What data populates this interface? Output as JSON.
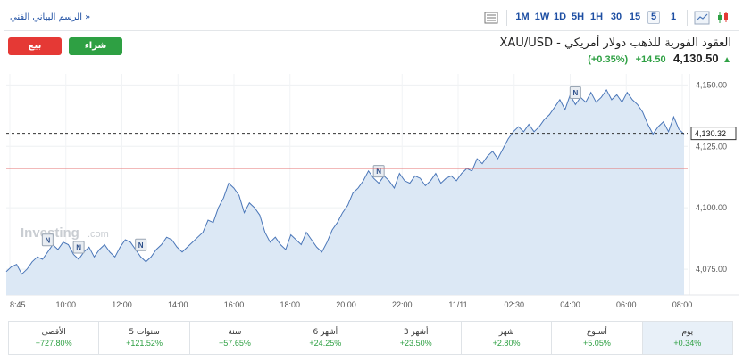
{
  "toolbar": {
    "tech_chart_link": "الرسم البياني الفني »",
    "timeframes": [
      "1M",
      "1W",
      "1D",
      "5H",
      "1H",
      "30",
      "15",
      "5",
      "1"
    ],
    "active_timeframe": "5"
  },
  "buttons": {
    "sell": "بيع",
    "buy": "شراء"
  },
  "instrument": {
    "title": "XAU/USD - العقود الفورية للذهب دولار أمريكي",
    "price": "4,130.50",
    "change": "+14.50",
    "change_pct": "(+0.35%)",
    "direction_icon": "up-arrow-icon"
  },
  "watermark": {
    "brand": "Investing",
    "suffix": ".com"
  },
  "chart_data": {
    "type": "area",
    "x_tick_labels": [
      "8:45",
      "10:00",
      "12:00",
      "14:00",
      "16:00",
      "18:00",
      "20:00",
      "22:00",
      "11/11",
      "02:30",
      "04:00",
      "06:00",
      "08:00"
    ],
    "y_tick_labels": [
      "4,150.00",
      "4,125.00",
      "4,100.00",
      "4,075.00"
    ],
    "y_ticks": [
      4150,
      4125,
      4100,
      4075
    ],
    "ylim": [
      4064.5,
      4154.5
    ],
    "last_price": 4130.32,
    "last_price_label": "4,130.32",
    "prev_close": 4116.0,
    "series": [
      {
        "values": [
          4074,
          4076,
          4077,
          4073,
          4075,
          4078,
          4080,
          4079,
          4082,
          4085,
          4083,
          4086,
          4085,
          4081,
          4079,
          4082,
          4084,
          4080,
          4083,
          4085,
          4082,
          4080,
          4084,
          4087,
          4086,
          4083,
          4080,
          4078,
          4080,
          4083,
          4085,
          4088,
          4087,
          4084,
          4082,
          4084,
          4086,
          4088,
          4090,
          4095,
          4094,
          4100,
          4104,
          4110,
          4108,
          4105,
          4098,
          4102,
          4100,
          4097,
          4090,
          4086,
          4088,
          4085,
          4083,
          4089,
          4087,
          4085,
          4090,
          4087,
          4084,
          4082,
          4086,
          4091,
          4094,
          4098,
          4101,
          4106,
          4108,
          4111,
          4115,
          4112,
          4110,
          4113,
          4111,
          4108,
          4114,
          4111,
          4110,
          4113,
          4112,
          4109,
          4111,
          4114,
          4110,
          4112,
          4113,
          4111,
          4114,
          4116,
          4115,
          4120,
          4118,
          4121,
          4123,
          4120,
          4124,
          4128,
          4131,
          4133,
          4131,
          4134,
          4131,
          4133,
          4136,
          4138,
          4141,
          4144,
          4140,
          4146,
          4142,
          4145,
          4143,
          4147,
          4143,
          4145,
          4148,
          4144,
          4146,
          4143,
          4147,
          4144,
          4142,
          4139,
          4134,
          4130,
          4133,
          4135,
          4131,
          4137,
          4132,
          4130
        ],
        "color": "#4a76b8",
        "fill": "#dce8f5"
      }
    ],
    "news_markers": [
      "N",
      "N",
      "N",
      "N",
      "N"
    ],
    "grid": true
  },
  "performance": [
    {
      "label": "الأقصى",
      "value": "+727.80%"
    },
    {
      "label": "5 سنوات",
      "value": "+121.52%"
    },
    {
      "label": "سنة",
      "value": "+57.65%"
    },
    {
      "label": "6 أشهر",
      "value": "+24.25%"
    },
    {
      "label": "3 أشهر",
      "value": "+23.50%"
    },
    {
      "label": "شهر",
      "value": "+2.80%"
    },
    {
      "label": "أسبوع",
      "value": "+5.05%"
    },
    {
      "label": "يوم",
      "value": "+0.34%"
    }
  ],
  "colors": {
    "accent": "#1e4fa3",
    "up": "#2ea043",
    "down": "#e53935",
    "line": "#4a76b8",
    "area": "#dce8f5",
    "prev_close": "#e57373"
  }
}
